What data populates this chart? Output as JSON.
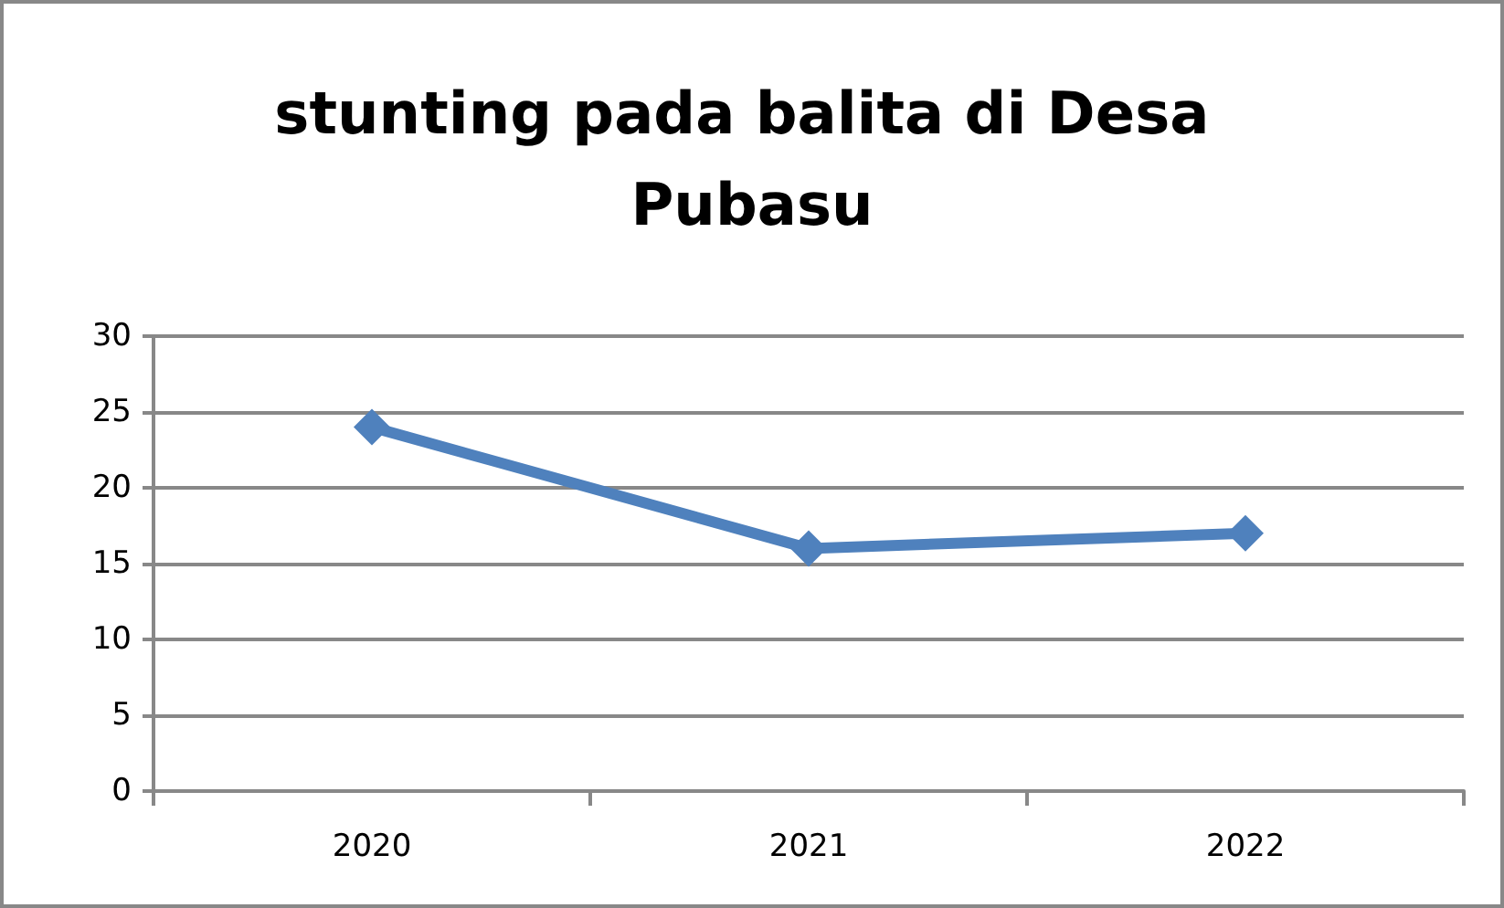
{
  "chart_data": {
    "type": "line",
    "title": "stunting pada balita di Desa Pubasu",
    "categories": [
      "2020",
      "2021",
      "2022"
    ],
    "series": [
      {
        "color": "#4f81bd",
        "values": [
          24,
          16,
          17
        ]
      }
    ],
    "ylim": [
      0,
      30
    ],
    "yticks": [
      0,
      5,
      10,
      15,
      20,
      25,
      30
    ],
    "grid": "y",
    "marker": "diamond",
    "line_style": "solid"
  }
}
